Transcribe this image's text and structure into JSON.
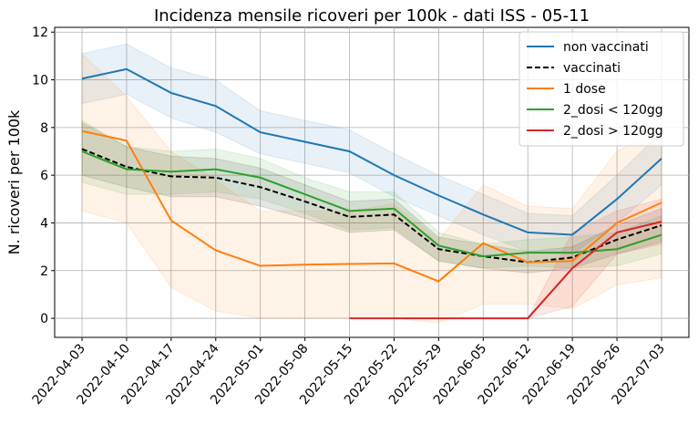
{
  "chart_data": {
    "type": "line",
    "title": "Incidenza mensile ricoveri per 100k - dati ISS - 05-11",
    "ylabel": "N. ricoveri per 100k",
    "categories": [
      "2022-04-03",
      "2022-04-10",
      "2022-04-17",
      "2022-04-24",
      "2022-05-01",
      "2022-05-08",
      "2022-05-15",
      "2022-05-22",
      "2022-05-29",
      "2022-06-05",
      "2022-06-12",
      "2022-06-19",
      "2022-06-26",
      "2022-07-03"
    ],
    "ylim": [
      -0.8,
      12.2
    ],
    "yticks": [
      0,
      2,
      4,
      6,
      8,
      10,
      12
    ],
    "grid": true,
    "legend": "upper right",
    "series": [
      {
        "name": "non vaccinati",
        "color": "#1f77b4",
        "dash": false,
        "values": [
          10.05,
          10.45,
          9.45,
          8.9,
          7.8,
          7.4,
          7.0,
          6.0,
          5.15,
          4.35,
          3.6,
          3.5,
          5.0,
          6.7
        ],
        "upper": [
          11.1,
          11.5,
          10.5,
          10.0,
          8.7,
          8.3,
          7.9,
          6.9,
          6.0,
          5.2,
          4.4,
          4.3,
          6.0,
          7.8
        ],
        "lower": [
          9.0,
          9.4,
          8.4,
          7.8,
          6.9,
          6.5,
          6.1,
          5.1,
          4.3,
          3.5,
          2.8,
          2.7,
          4.0,
          5.6
        ]
      },
      {
        "name": "vaccinati",
        "color": "#000000",
        "dash": true,
        "values": [
          7.1,
          6.35,
          5.95,
          5.9,
          5.5,
          4.9,
          4.25,
          4.35,
          2.9,
          2.6,
          2.35,
          2.55,
          3.3,
          3.9
        ],
        "upper": [
          8.2,
          7.2,
          6.8,
          6.7,
          6.3,
          5.6,
          4.9,
          5.0,
          3.4,
          3.1,
          2.8,
          3.0,
          3.9,
          4.6
        ],
        "lower": [
          6.0,
          5.5,
          5.1,
          5.1,
          4.7,
          4.2,
          3.6,
          3.7,
          2.4,
          2.1,
          1.9,
          2.1,
          2.7,
          3.2
        ]
      },
      {
        "name": "1 dose",
        "color": "#ff7f0e",
        "dash": false,
        "values": [
          7.85,
          7.45,
          4.1,
          2.85,
          2.2,
          2.25,
          2.28,
          2.3,
          1.55,
          3.15,
          2.35,
          2.4,
          4.0,
          4.85
        ],
        "upper": [
          11.1,
          9.3,
          7.0,
          5.8,
          4.5,
          4.5,
          4.5,
          4.8,
          3.3,
          5.6,
          4.7,
          4.6,
          7.0,
          8.0
        ],
        "lower": [
          4.5,
          4.0,
          1.3,
          0.3,
          0.0,
          0.0,
          0.0,
          0.0,
          -0.2,
          0.6,
          0.6,
          0.4,
          1.4,
          1.7
        ]
      },
      {
        "name": "2_dosi < 120gg",
        "color": "#2ca02c",
        "dash": false,
        "values": [
          7.0,
          6.25,
          6.15,
          6.25,
          5.9,
          5.2,
          4.5,
          4.6,
          3.05,
          2.6,
          2.75,
          2.75,
          2.9,
          3.5
        ],
        "upper": [
          8.3,
          7.2,
          7.0,
          7.1,
          6.7,
          5.9,
          5.3,
          5.3,
          3.6,
          3.1,
          3.3,
          3.4,
          3.6,
          4.3
        ],
        "lower": [
          5.7,
          5.2,
          5.2,
          5.3,
          5.0,
          4.4,
          3.7,
          3.8,
          2.4,
          2.1,
          2.2,
          2.1,
          2.2,
          2.7
        ]
      },
      {
        "name": "2_dosi > 120gg",
        "color": "#d62728",
        "dash": false,
        "values": [
          null,
          null,
          null,
          null,
          null,
          null,
          0,
          0,
          0,
          0,
          0,
          2.1,
          3.6,
          4.05
        ],
        "upper": [
          null,
          null,
          null,
          null,
          null,
          null,
          0,
          0,
          0,
          0,
          0,
          3.6,
          4.5,
          5.0
        ],
        "lower": [
          null,
          null,
          null,
          null,
          null,
          null,
          0,
          0,
          0,
          0,
          0,
          0.5,
          2.7,
          3.1
        ]
      }
    ]
  }
}
